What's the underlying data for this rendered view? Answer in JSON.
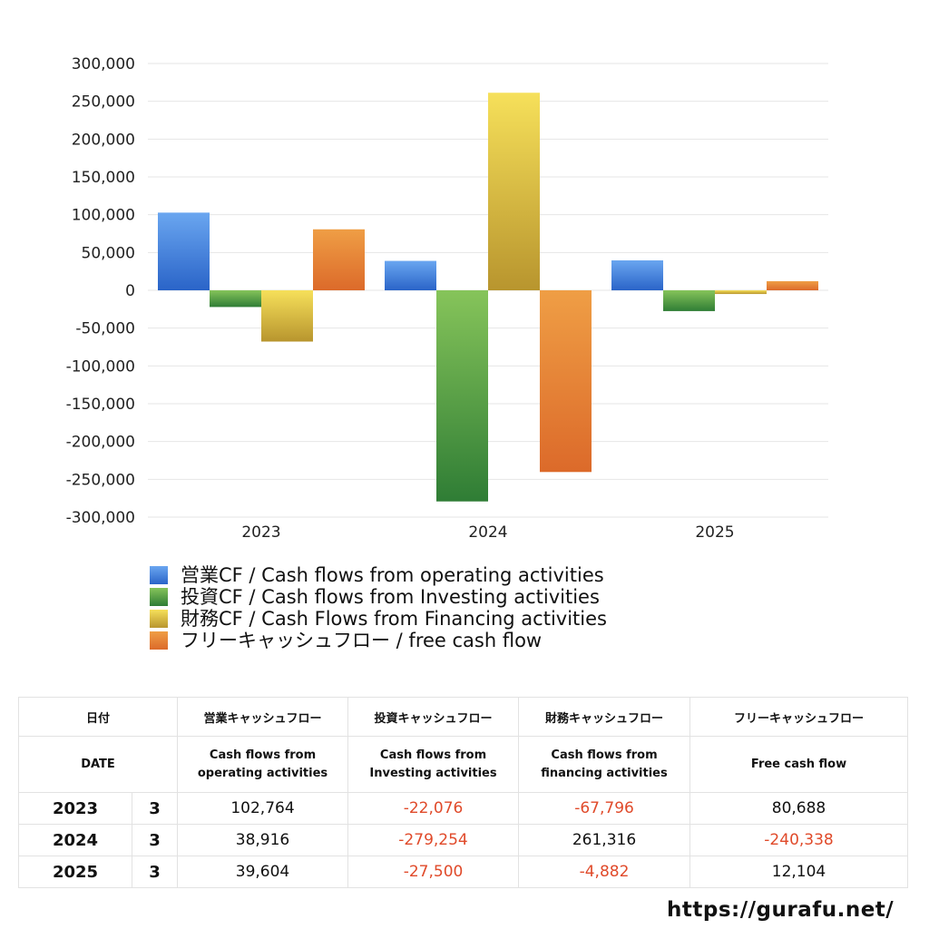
{
  "chart_data": {
    "type": "bar",
    "categories": [
      "2023",
      "2024",
      "2025"
    ],
    "ylim": [
      -300000,
      300000
    ],
    "yticks": [
      300000,
      250000,
      200000,
      150000,
      100000,
      50000,
      0,
      -50000,
      -100000,
      -150000,
      -200000,
      -250000,
      -300000
    ],
    "ytick_labels": [
      "300,000",
      "250,000",
      "200,000",
      "150,000",
      "100,000",
      "50,000",
      "0",
      "-50,000",
      "-100,000",
      "-150,000",
      "-200,000",
      "-250,000",
      "-300,000"
    ],
    "grid": true,
    "legend_position": "bottom",
    "series": [
      {
        "name": "営業CF / Cash flows from operating activities",
        "values": [
          102764,
          38916,
          39604
        ],
        "color_top": "#6aa6f0",
        "color_bottom": "#2a64c8"
      },
      {
        "name": "投資CF / Cash flows from Investing activities",
        "values": [
          -22076,
          -279254,
          -27500
        ],
        "color_top": "#86c45a",
        "color_bottom": "#2f7d35"
      },
      {
        "name": "財務CF / Cash Flows from Financing activities",
        "values": [
          -67796,
          261316,
          -4882
        ],
        "color_top": "#f6e05a",
        "color_bottom": "#b8952e"
      },
      {
        "name": "フリーキャッシュフロー / free cash flow",
        "values": [
          80688,
          -240338,
          12104
        ],
        "color_top": "#ef9e45",
        "color_bottom": "#dc6a2a"
      }
    ]
  },
  "table": {
    "header_jp": [
      "日付",
      "営業キャッシュフロー",
      "投資キャッシュフロー",
      "財務キャッシュフロー",
      "フリーキャッシュフロー"
    ],
    "header_en": [
      "DATE",
      "Cash flows from\noperating activities",
      "Cash flows from\nInvesting activities",
      "Cash flows from\nfinancing activities",
      "Free cash flow"
    ],
    "rows": [
      {
        "year": "2023",
        "month": "3",
        "operating": "102,764",
        "investing": "-22,076",
        "financing": "-67,796",
        "free": "80,688"
      },
      {
        "year": "2024",
        "month": "3",
        "operating": "38,916",
        "investing": "-279,254",
        "financing": "261,316",
        "free": "-240,338"
      },
      {
        "year": "2025",
        "month": "3",
        "operating": "39,604",
        "investing": "-27,500",
        "financing": "-4,882",
        "free": "12,104"
      }
    ],
    "negative_color": "#e04a2a"
  },
  "footer": {
    "site": "https://gurafu.net/"
  }
}
